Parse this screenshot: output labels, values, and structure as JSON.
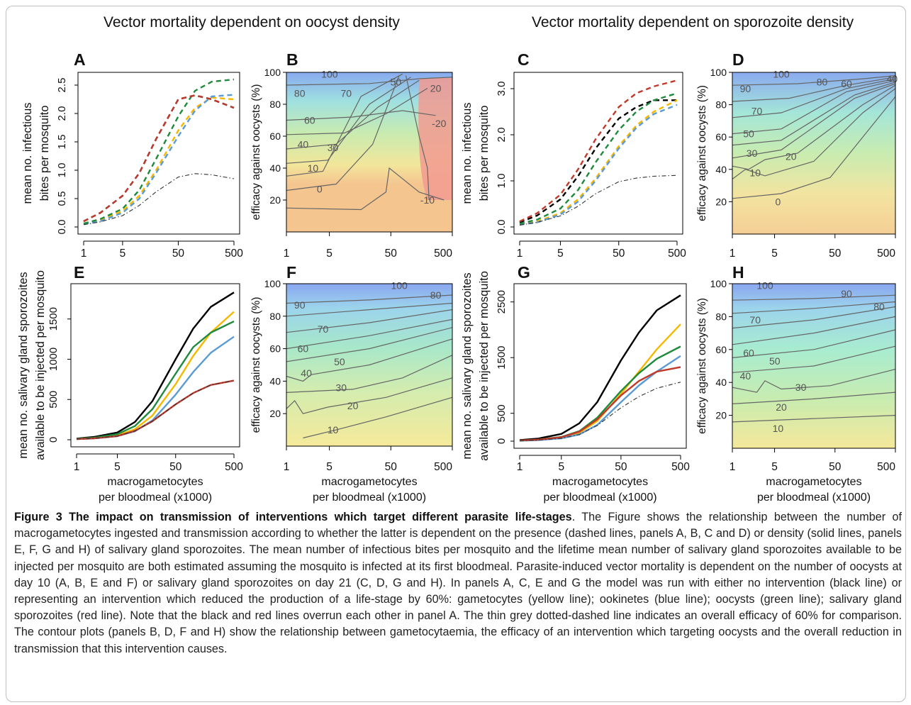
{
  "headers": {
    "left": "Vector mortality dependent on oocyst density",
    "right": "Vector mortality dependent on sporozoite density"
  },
  "colors": {
    "no_intervention": "#000000",
    "gametocytes": "#f5b800",
    "ookinetes": "#5b9bd5",
    "oocysts": "#1e8a3c",
    "sporozoites": "#c0392b",
    "reference": "#333333"
  },
  "shared_axes": {
    "xlabel_line1": "macrogametocytes",
    "xlabel_line2": "per bloodmeal (x1000)",
    "ylabel_bites_line1": "mean no. infectious",
    "ylabel_bites_line2": "bites per mosquito",
    "ylabel_spz_line1": "mean no. salivary gland sporozoites",
    "ylabel_spz_line2": "available to be injected per mosquito",
    "ylabel_efficacy": "efficacy against oocysts (%)"
  },
  "chart_data": [
    {
      "panel": "A",
      "type": "line",
      "xscale": "log",
      "xlim": [
        1,
        500
      ],
      "xticks": [
        "1",
        "5",
        "50",
        "500"
      ],
      "ylim": [
        0,
        2.6
      ],
      "yticks": [
        "0.0",
        "0.5",
        "1.0",
        "1.5",
        "2.0",
        "2.5"
      ],
      "x": [
        1,
        2,
        5,
        10,
        20,
        50,
        100,
        200,
        500
      ],
      "series": [
        {
          "color_key": "no_intervention",
          "dash": "dashed",
          "values": [
            0.1,
            0.25,
            0.55,
            0.95,
            1.55,
            2.25,
            2.32,
            2.25,
            2.1
          ]
        },
        {
          "color_key": "gametocytes",
          "dash": "dashed",
          "values": [
            0.06,
            0.12,
            0.28,
            0.55,
            1.0,
            1.7,
            2.1,
            2.28,
            2.25
          ]
        },
        {
          "color_key": "ookinetes",
          "dash": "dashed",
          "values": [
            0.05,
            0.1,
            0.25,
            0.5,
            0.95,
            1.6,
            2.05,
            2.3,
            2.33
          ]
        },
        {
          "color_key": "oocysts",
          "dash": "dashed",
          "values": [
            0.06,
            0.14,
            0.32,
            0.65,
            1.2,
            1.95,
            2.4,
            2.56,
            2.6
          ]
        },
        {
          "color_key": "sporozoites",
          "dash": "dashed",
          "values": [
            0.1,
            0.25,
            0.55,
            0.95,
            1.55,
            2.25,
            2.32,
            2.25,
            2.1
          ]
        },
        {
          "color_key": "reference",
          "dash": "dotdash",
          "values": [
            0.04,
            0.09,
            0.2,
            0.38,
            0.62,
            0.88,
            0.94,
            0.92,
            0.85
          ]
        }
      ]
    },
    {
      "panel": "B",
      "type": "heatmap",
      "xscale": "log",
      "xlim": [
        1,
        500
      ],
      "xticks": [
        "1",
        "5",
        "50",
        "500"
      ],
      "ylim": [
        0,
        100
      ],
      "yticks": [
        "20",
        "40",
        "60",
        "80",
        "100"
      ],
      "contour_labels": [
        "100",
        "80",
        "70",
        "60",
        "50",
        "40",
        "30",
        "20",
        "10",
        "0",
        "-20",
        "-10"
      ]
    },
    {
      "panel": "C",
      "type": "line",
      "xscale": "log",
      "xlim": [
        1,
        500
      ],
      "xticks": [
        "1",
        "5",
        "50",
        "500"
      ],
      "ylim": [
        0,
        3.2
      ],
      "yticks": [
        "0.0",
        "1.0",
        "2.0",
        "3.0"
      ],
      "x": [
        1,
        2,
        5,
        10,
        20,
        50,
        100,
        200,
        500
      ],
      "series": [
        {
          "color_key": "no_intervention",
          "dash": "dashed",
          "values": [
            0.1,
            0.25,
            0.6,
            1.1,
            1.7,
            2.35,
            2.6,
            2.75,
            2.75
          ]
        },
        {
          "color_key": "gametocytes",
          "dash": "dashed",
          "values": [
            0.05,
            0.12,
            0.3,
            0.6,
            1.05,
            1.75,
            2.2,
            2.5,
            2.75
          ]
        },
        {
          "color_key": "ookinetes",
          "dash": "dashed",
          "values": [
            0.05,
            0.1,
            0.27,
            0.55,
            1.0,
            1.7,
            2.15,
            2.45,
            2.65
          ]
        },
        {
          "color_key": "oocysts",
          "dash": "dashed",
          "values": [
            0.07,
            0.16,
            0.4,
            0.8,
            1.4,
            2.1,
            2.5,
            2.75,
            2.9
          ]
        },
        {
          "color_key": "sporozoites",
          "dash": "dashed",
          "values": [
            0.12,
            0.3,
            0.7,
            1.25,
            1.9,
            2.6,
            2.9,
            3.05,
            3.18
          ]
        },
        {
          "color_key": "reference",
          "dash": "dotdash",
          "values": [
            0.04,
            0.1,
            0.24,
            0.45,
            0.72,
            0.98,
            1.06,
            1.1,
            1.12
          ]
        }
      ]
    },
    {
      "panel": "D",
      "type": "heatmap",
      "xscale": "log",
      "xlim": [
        1,
        500
      ],
      "xticks": [
        "1",
        "5",
        "50",
        "500"
      ],
      "ylim": [
        0,
        100
      ],
      "yticks": [
        "20",
        "40",
        "60",
        "80",
        "100"
      ],
      "contour_labels": [
        "100",
        "90",
        "80",
        "70",
        "60",
        "50",
        "40",
        "30",
        "20",
        "10",
        "0"
      ]
    },
    {
      "panel": "E",
      "type": "line",
      "xscale": "log",
      "xlim": [
        1,
        500
      ],
      "xticks": [
        "1",
        "5",
        "50",
        "500"
      ],
      "ylim": [
        0,
        1850
      ],
      "yticks": [
        "0",
        "500",
        "1000",
        "1500"
      ],
      "x": [
        1,
        2,
        5,
        10,
        20,
        50,
        100,
        200,
        500
      ],
      "series": [
        {
          "color_key": "no_intervention",
          "dash": "solid",
          "values": [
            15,
            35,
            90,
            220,
            480,
            1000,
            1380,
            1650,
            1830
          ]
        },
        {
          "color_key": "gametocytes",
          "dash": "solid",
          "values": [
            10,
            20,
            55,
            130,
            300,
            690,
            1040,
            1330,
            1590
          ]
        },
        {
          "color_key": "ookinetes",
          "dash": "solid",
          "values": [
            8,
            17,
            45,
            105,
            240,
            560,
            840,
            1080,
            1280
          ]
        },
        {
          "color_key": "oocysts",
          "dash": "solid",
          "values": [
            12,
            25,
            70,
            170,
            380,
            820,
            1150,
            1330,
            1470
          ]
        },
        {
          "color_key": "sporozoites",
          "dash": "solid",
          "values": [
            8,
            17,
            45,
            110,
            230,
            440,
            580,
            680,
            735
          ]
        },
        {
          "color_key": "reference",
          "dash": "dotdash",
          "values": [
            8,
            17,
            45,
            110,
            230,
            440,
            580,
            680,
            735
          ]
        }
      ]
    },
    {
      "panel": "F",
      "type": "heatmap",
      "xscale": "log",
      "xlim": [
        1,
        500
      ],
      "xticks": [
        "1",
        "5",
        "50",
        "500"
      ],
      "ylim": [
        0,
        100
      ],
      "yticks": [
        "20",
        "40",
        "60",
        "80",
        "100"
      ],
      "contour_labels": [
        "100",
        "90",
        "80",
        "70",
        "60",
        "50",
        "40",
        "30",
        "20",
        "10"
      ]
    },
    {
      "panel": "G",
      "type": "line",
      "xscale": "log",
      "xlim": [
        1,
        500
      ],
      "xticks": [
        "1",
        "5",
        "50",
        "500"
      ],
      "ylim": [
        0,
        2700
      ],
      "yticks": [
        "0",
        "500",
        "1500",
        "2500"
      ],
      "x": [
        1,
        2,
        5,
        10,
        20,
        50,
        100,
        200,
        500
      ],
      "series": [
        {
          "color_key": "no_intervention",
          "dash": "solid",
          "values": [
            20,
            45,
            130,
            320,
            700,
            1450,
            1950,
            2350,
            2620
          ]
        },
        {
          "color_key": "gametocytes",
          "dash": "solid",
          "values": [
            10,
            22,
            60,
            150,
            360,
            850,
            1250,
            1650,
            2100
          ]
        },
        {
          "color_key": "ookinetes",
          "dash": "solid",
          "values": [
            8,
            18,
            50,
            120,
            290,
            700,
            1000,
            1250,
            1530
          ]
        },
        {
          "color_key": "oocysts",
          "dash": "solid",
          "values": [
            12,
            27,
            75,
            180,
            420,
            900,
            1220,
            1480,
            1700
          ]
        },
        {
          "color_key": "sporozoites",
          "dash": "solid",
          "values": [
            12,
            25,
            70,
            170,
            390,
            820,
            1080,
            1250,
            1330
          ]
        },
        {
          "color_key": "reference",
          "dash": "dotdash",
          "values": [
            8,
            18,
            50,
            120,
            280,
            600,
            800,
            950,
            1060
          ]
        }
      ]
    },
    {
      "panel": "H",
      "type": "heatmap",
      "xscale": "log",
      "xlim": [
        1,
        500
      ],
      "xticks": [
        "1",
        "5",
        "50",
        "500"
      ],
      "ylim": [
        0,
        100
      ],
      "yticks": [
        "20",
        "40",
        "60",
        "80",
        "100"
      ],
      "contour_labels": [
        "100",
        "90",
        "80",
        "70",
        "60",
        "50",
        "40",
        "30",
        "20",
        "10"
      ]
    }
  ],
  "caption": {
    "title": "Figure 3 The impact on transmission of interventions which target different parasite life-stages",
    "body": ". The Figure shows the relationship between the number of macrogametocytes ingested and transmission according to whether the latter is dependent on the presence (dashed lines, panels A, B, C and D) or density (solid lines, panels E, F, G and H) of salivary gland sporozoites. The mean number of infectious bites per mosquito and the lifetime mean number of salivary gland sporozoites available to be injected per mosquito are both estimated assuming the mosquito is infected at its first bloodmeal. Parasite-induced vector mortality is dependent on the number of oocysts at day 10 (A, B, E and F) or salivary gland sporozoites on day 21 (C, D, G and H). In panels A, C, E and G the model was run with either no intervention (black line) or representing an intervention which reduced the production of a life-stage by 60%: gametocytes (yellow line); ookinetes (blue line); oocysts (green line); salivary gland sporozoites (red line). Note that the black and red lines overrun each other in panel A. The thin grey dotted-dashed line indicates an overall efficacy of 60% for comparison. The contour plots (panels B, D, F and H) show the relationship between gametocytaemia, the efficacy of an intervention which targeting oocysts and the overall reduction in transmission that this intervention causes."
  }
}
